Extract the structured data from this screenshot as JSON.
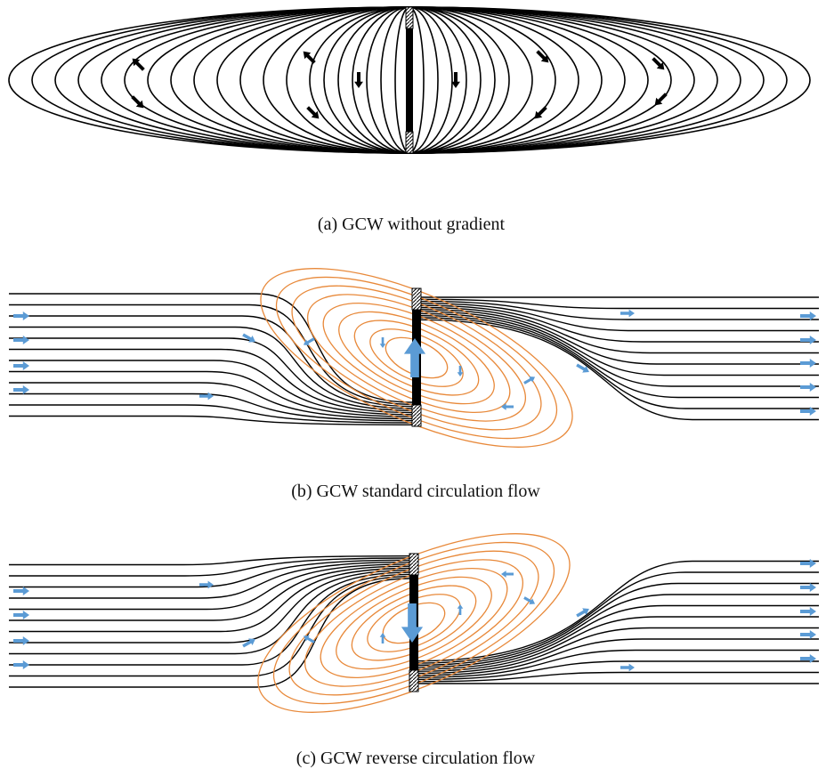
{
  "panels": [
    {
      "caption": "(a) GCW without gradient"
    },
    {
      "caption": "(b) GCW standard circulation flow"
    },
    {
      "caption": "(c) GCW reverse circulation flow"
    }
  ]
}
